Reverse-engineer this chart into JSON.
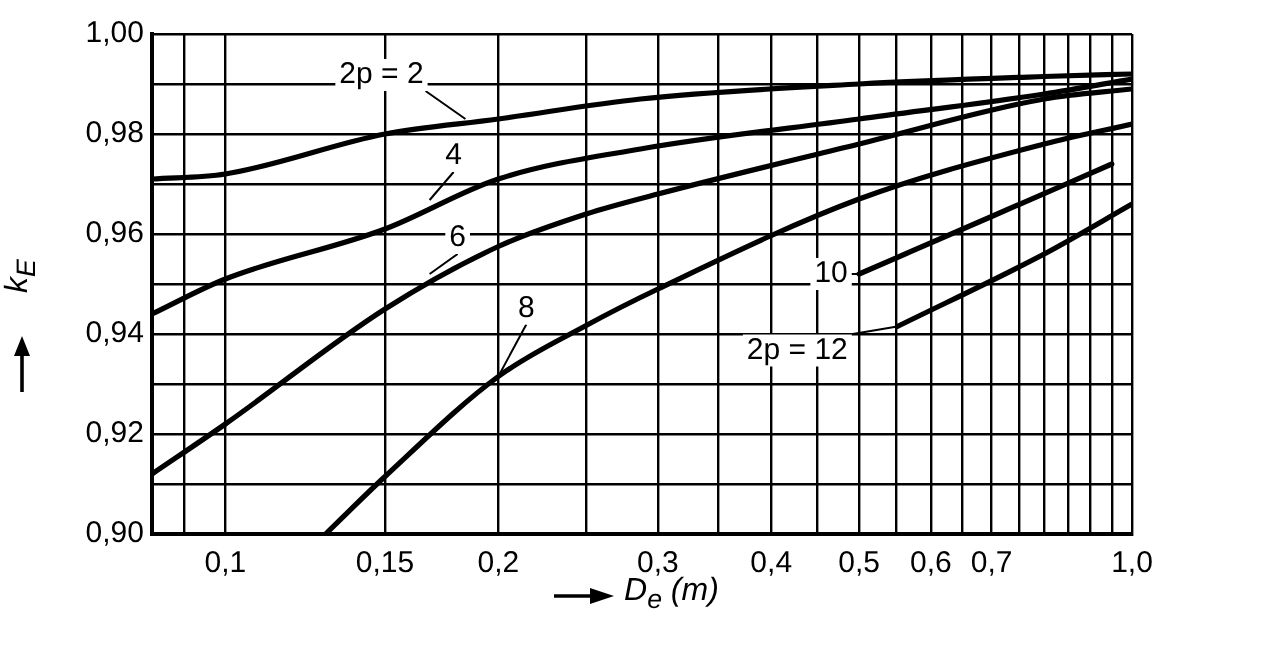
{
  "chart_data": {
    "type": "line",
    "xlabel": "D$_{e}$ (m)",
    "ylabel": "k$_{E}$",
    "log": "x",
    "grid": true,
    "legend": false,
    "marker": "none",
    "line_style": "solid",
    "xlim": [
      0.083,
      1.0
    ],
    "ylim": [
      0.9,
      1.0
    ],
    "xticks": [
      {
        "value": 0.09,
        "label": null
      },
      {
        "value": 0.1,
        "label": "0,1"
      },
      {
        "value": 0.15,
        "label": "0,15"
      },
      {
        "value": 0.2,
        "label": "0,2"
      },
      {
        "value": 0.25,
        "label": null
      },
      {
        "value": 0.3,
        "label": "0,3"
      },
      {
        "value": 0.35,
        "label": null
      },
      {
        "value": 0.4,
        "label": "0,4"
      },
      {
        "value": 0.45,
        "label": null
      },
      {
        "value": 0.5,
        "label": "0,5"
      },
      {
        "value": 0.55,
        "label": null
      },
      {
        "value": 0.6,
        "label": "0,6"
      },
      {
        "value": 0.65,
        "label": null
      },
      {
        "value": 0.7,
        "label": "0,7"
      },
      {
        "value": 0.75,
        "label": null
      },
      {
        "value": 0.8,
        "label": null
      },
      {
        "value": 0.85,
        "label": null
      },
      {
        "value": 0.9,
        "label": null
      },
      {
        "value": 0.95,
        "label": null
      },
      {
        "value": 1.0,
        "label": "1,0"
      }
    ],
    "yticks": [
      {
        "value": 0.9,
        "label": "0,90"
      },
      {
        "value": 0.91,
        "label": null
      },
      {
        "value": 0.92,
        "label": "0,92"
      },
      {
        "value": 0.93,
        "label": null
      },
      {
        "value": 0.94,
        "label": "0,94"
      },
      {
        "value": 0.95,
        "label": null
      },
      {
        "value": 0.96,
        "label": "0,96"
      },
      {
        "value": 0.97,
        "label": null
      },
      {
        "value": 0.98,
        "label": "0,98"
      },
      {
        "value": 0.99,
        "label": null
      },
      {
        "value": 1.0,
        "label": "1,00"
      }
    ],
    "series": [
      {
        "color": "#000000",
        "x": [
          0.083,
          0.1,
          0.15,
          0.2,
          0.287,
          0.5,
          0.8,
          1.0
        ],
        "values": [
          0.971,
          0.972,
          0.98,
          0.983,
          0.987,
          0.99,
          0.9915,
          0.992
        ]
      },
      {
        "color": "#000000",
        "x": [
          0.083,
          0.1,
          0.15,
          0.2,
          0.287,
          0.5,
          0.8,
          1.0
        ],
        "values": [
          0.944,
          0.951,
          0.961,
          0.971,
          0.977,
          0.983,
          0.988,
          0.991
        ]
      },
      {
        "color": "#000000",
        "x": [
          0.083,
          0.1,
          0.15,
          0.2,
          0.25,
          0.3,
          0.5,
          0.8,
          1.0
        ],
        "values": [
          0.912,
          0.922,
          0.945,
          0.9575,
          0.964,
          0.968,
          0.978,
          0.987,
          0.989
        ]
      },
      {
        "color": "#000000",
        "x": [
          0.129,
          0.15,
          0.2,
          0.25,
          0.3,
          0.5,
          0.8,
          1.0
        ],
        "values": [
          0.9,
          0.9115,
          0.9315,
          0.9417,
          0.949,
          0.967,
          0.978,
          0.982
        ]
      },
      {
        "color": "#000000",
        "x": [
          0.5,
          0.7,
          0.95
        ],
        "values": [
          0.952,
          0.9635,
          0.974
        ]
      },
      {
        "color": "#000000",
        "x": [
          0.551,
          0.8,
          1.0
        ],
        "values": [
          0.9415,
          0.956,
          0.966
        ]
      }
    ],
    "annotations": [
      {
        "text": "2p = 2",
        "x": 0.184,
        "y": 0.983
      },
      {
        "text": "4",
        "x": 0.168,
        "y": 0.9668
      },
      {
        "text": "6",
        "x": 0.168,
        "y": 0.952
      },
      {
        "text": "8",
        "x": 0.2,
        "y": 0.9315
      },
      {
        "text": "10",
        "x": 0.5,
        "y": 0.952
      },
      {
        "text": "2p = 12",
        "x": 0.551,
        "y": 0.9415
      }
    ]
  }
}
